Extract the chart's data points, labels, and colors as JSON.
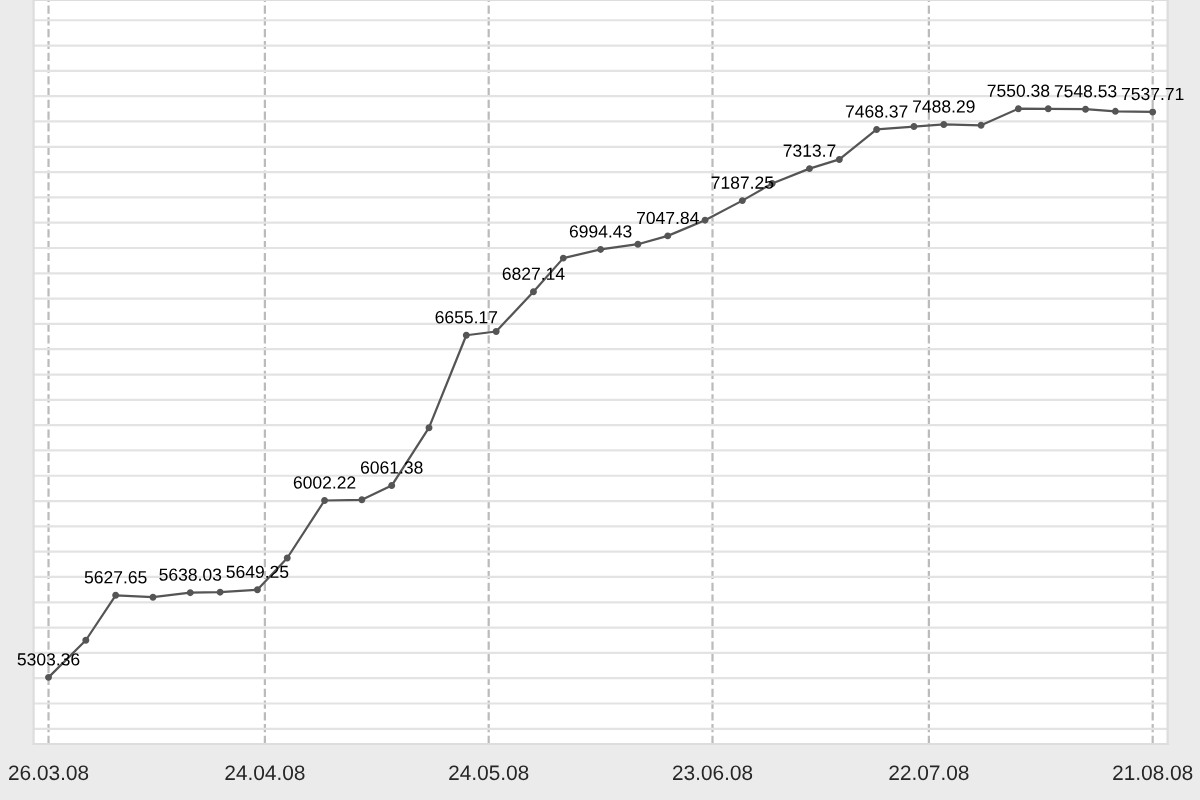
{
  "chart_data": {
    "type": "line",
    "x": [
      "2008-03-26",
      "2008-03-31",
      "2008-04-04",
      "2008-04-09",
      "2008-04-14",
      "2008-04-18",
      "2008-04-23",
      "2008-04-27",
      "2008-05-02",
      "2008-05-07",
      "2008-05-11",
      "2008-05-16",
      "2008-05-21",
      "2008-05-25",
      "2008-05-30",
      "2008-06-03",
      "2008-06-08",
      "2008-06-13",
      "2008-06-17",
      "2008-06-22",
      "2008-06-27",
      "2008-07-01",
      "2008-07-06",
      "2008-07-10",
      "2008-07-15",
      "2008-07-20",
      "2008-07-24",
      "2008-07-29",
      "2008-08-03",
      "2008-08-07",
      "2008-08-12",
      "2008-08-16",
      "2008-08-21"
    ],
    "series": [
      {
        "color": "#555555",
        "values": [
          5303.36,
          5450,
          5627.65,
          5620,
          5638.03,
          5640,
          5649.25,
          5775,
          6002.22,
          6005,
          6061.38,
          6290,
          6655.17,
          6670,
          6827.14,
          6960,
          6994.43,
          7015,
          7047.84,
          7110,
          7187.25,
          7255,
          7313.7,
          7350,
          7468.37,
          7480,
          7488.29,
          7485,
          7550.38,
          7550,
          7548.53,
          7540,
          7537.71
        ],
        "value_labels": [
          "5303.36",
          null,
          "5627.65",
          null,
          "5638.03",
          null,
          "5649.25",
          null,
          "6002.22",
          null,
          "6061.38",
          null,
          "6655.17",
          null,
          "6827.14",
          null,
          "6994.43",
          null,
          "7047.84",
          null,
          "7187.25",
          null,
          "7313.7",
          null,
          "7468.37",
          null,
          "7488.29",
          null,
          "7550.38",
          null,
          "7548.53",
          null,
          "7537.71"
        ]
      }
    ],
    "xlim": [
      "2008-03-24",
      "2008-08-23"
    ],
    "xticks": [
      {
        "value": "2008-03-26",
        "label": "26.03.08"
      },
      {
        "value": "2008-04-24",
        "label": "24.04.08"
      },
      {
        "value": "2008-05-24",
        "label": "24.05.08"
      },
      {
        "value": "2008-06-23",
        "label": "23.06.08"
      },
      {
        "value": "2008-07-22",
        "label": "22.07.08"
      },
      {
        "value": "2008-08-21",
        "label": "21.08.08"
      }
    ],
    "ylim": [
      5040,
      7980
    ],
    "yticks": [
      {
        "value": 5100,
        "label": null
      },
      {
        "value": 5200,
        "label": null
      },
      {
        "value": 5300,
        "label": null
      },
      {
        "value": 5400,
        "label": null
      },
      {
        "value": 5500,
        "label": null
      },
      {
        "value": 5600,
        "label": null
      },
      {
        "value": 5700,
        "label": null
      },
      {
        "value": 5800,
        "label": null
      },
      {
        "value": 5900,
        "label": null
      },
      {
        "value": 6000,
        "label": null
      },
      {
        "value": 6100,
        "label": null
      },
      {
        "value": 6200,
        "label": null
      },
      {
        "value": 6300,
        "label": null
      },
      {
        "value": 6400,
        "label": null
      },
      {
        "value": 6500,
        "label": null
      },
      {
        "value": 6600,
        "label": null
      },
      {
        "value": 6700,
        "label": null
      },
      {
        "value": 6800,
        "label": null
      },
      {
        "value": 6900,
        "label": null
      },
      {
        "value": 7000,
        "label": null
      },
      {
        "value": 7100,
        "label": null
      },
      {
        "value": 7200,
        "label": null
      },
      {
        "value": 7300,
        "label": null
      },
      {
        "value": 7400,
        "label": null
      },
      {
        "value": 7500,
        "label": null
      },
      {
        "value": 7600,
        "label": null
      },
      {
        "value": 7700,
        "label": null
      },
      {
        "value": 7800,
        "label": null
      },
      {
        "value": 7900,
        "label": null
      }
    ],
    "grid": true,
    "marker": "circle",
    "line_style": "solid",
    "legend": false
  }
}
